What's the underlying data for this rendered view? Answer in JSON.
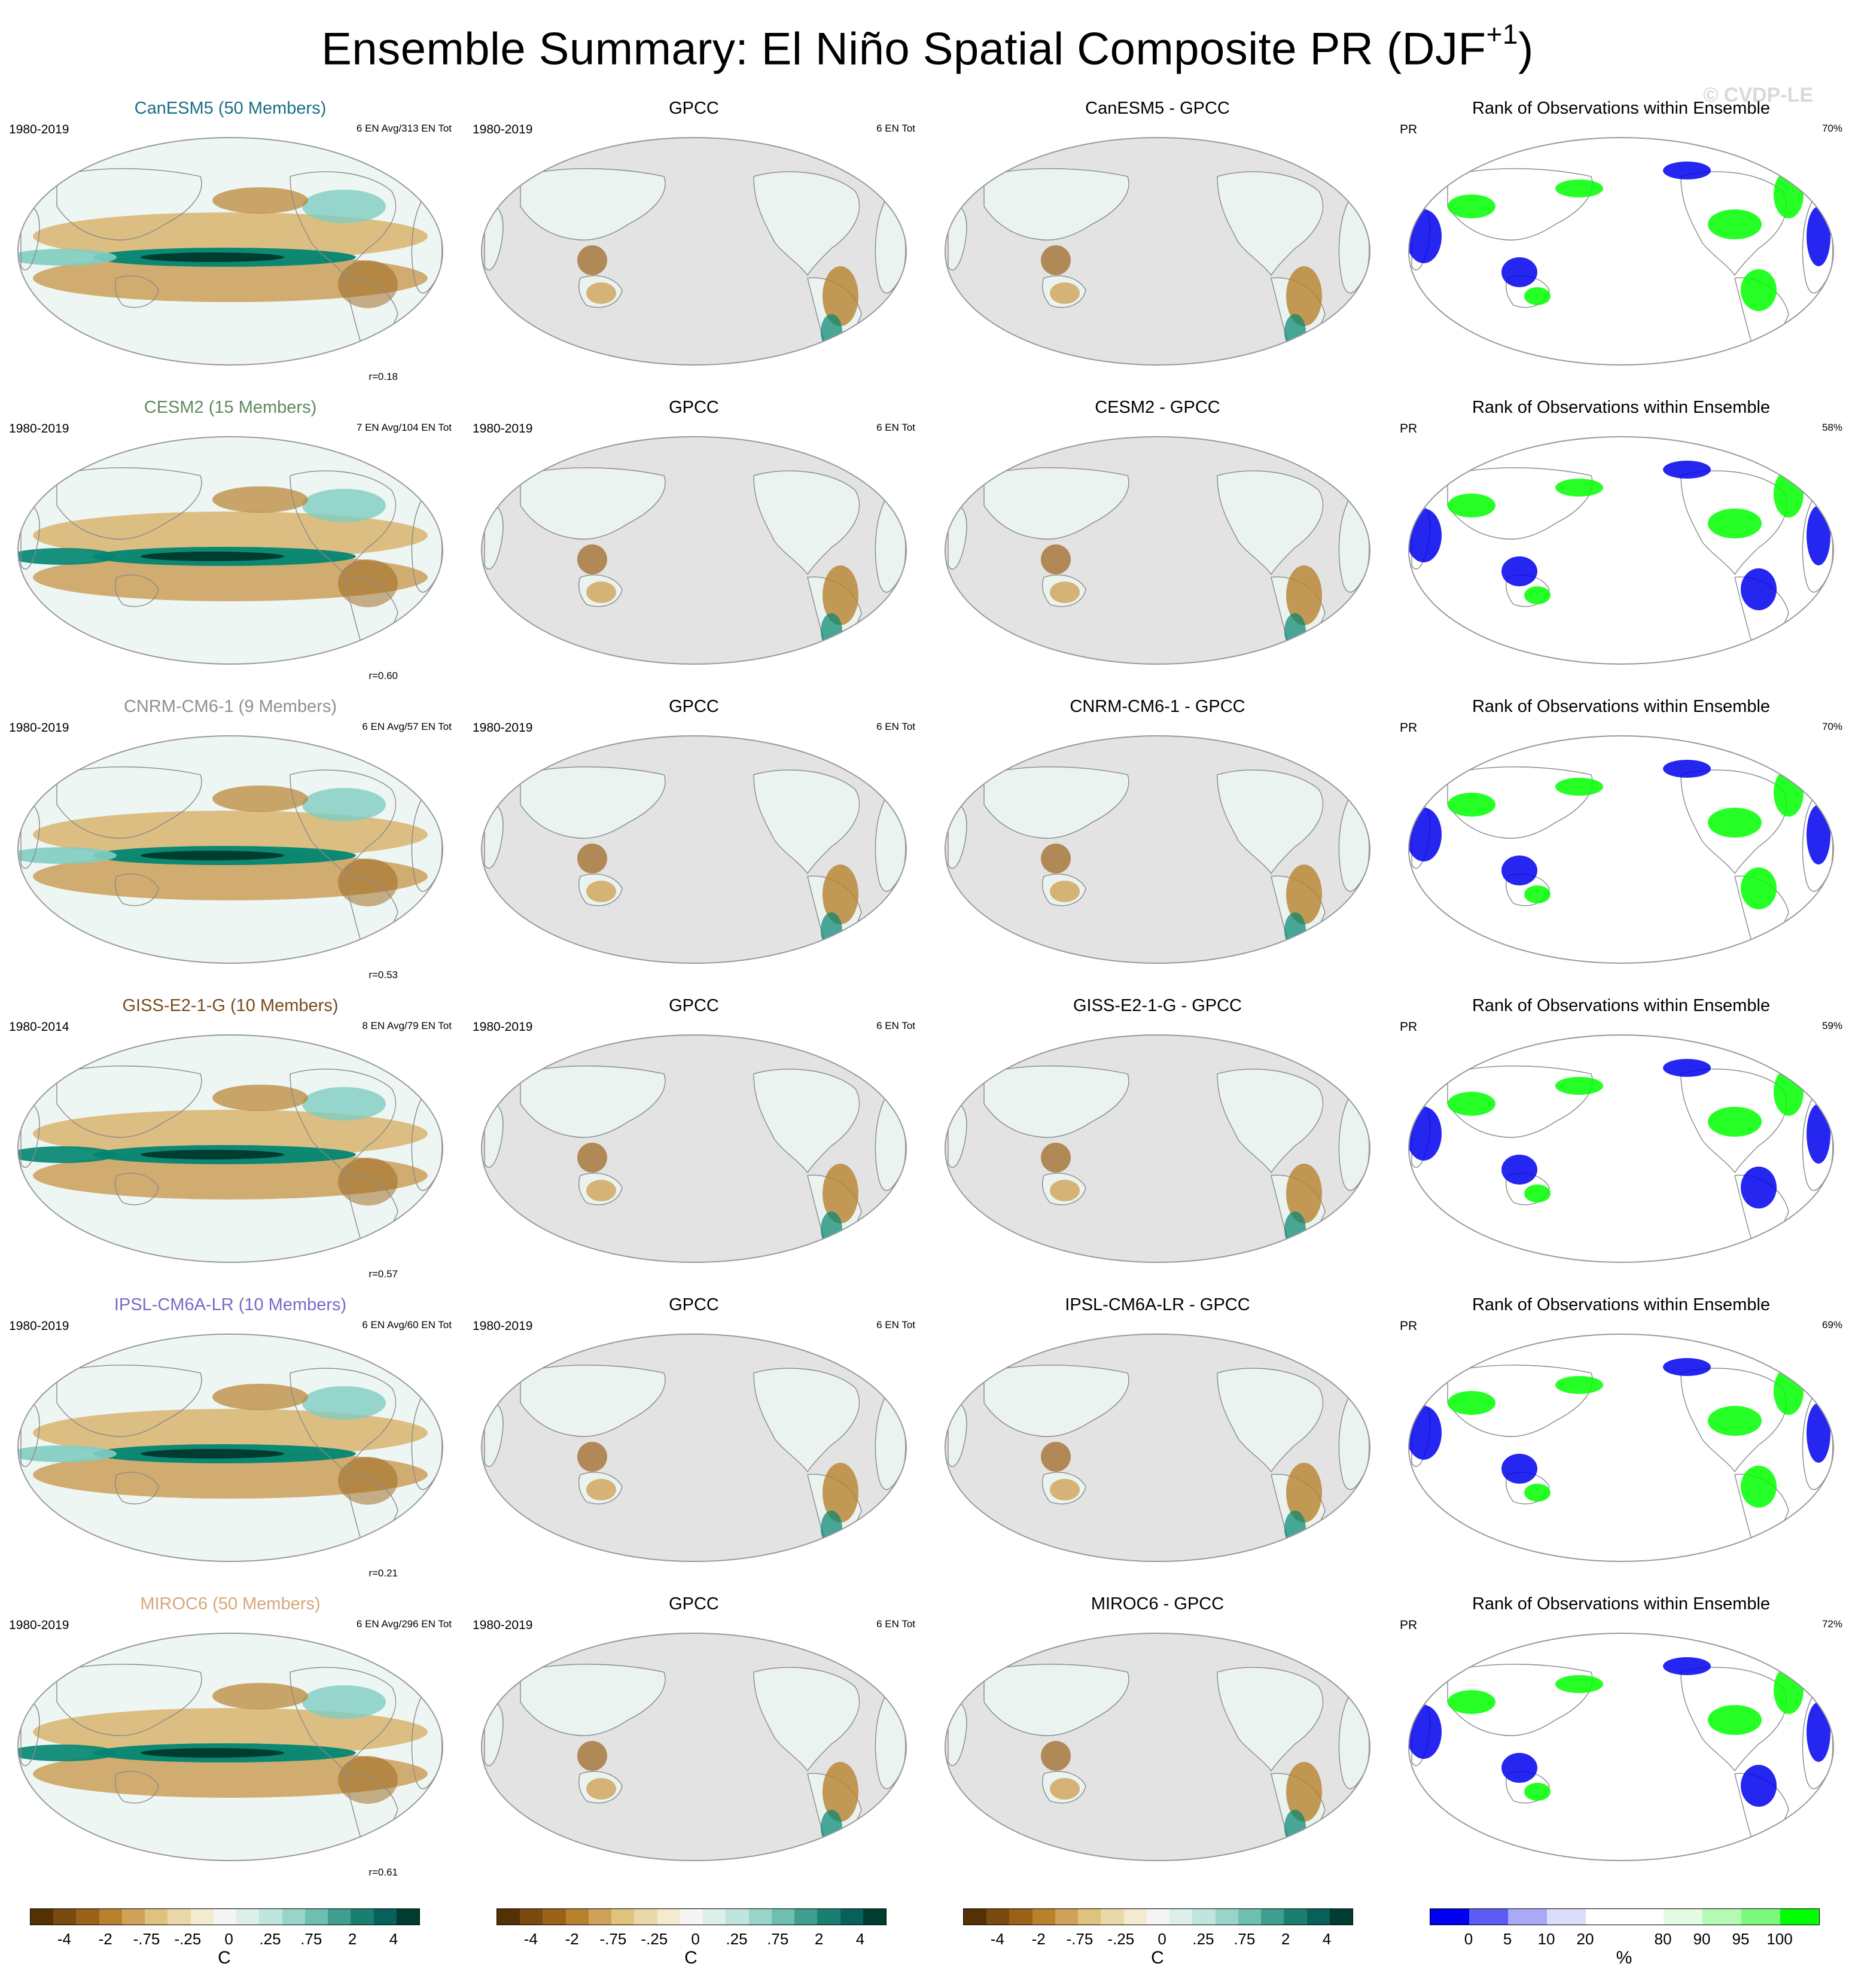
{
  "title": "Ensemble Summary: El Niño Spatial Composite PR (DJF",
  "title_sup": "+1",
  "title_close": ")",
  "watermark": "© CVDP-LE",
  "colors": {
    "brown_dark": "#543005",
    "brown": "#a6611a",
    "tan": "#dfc27d",
    "neutral": "#f5f5f5",
    "teal_light": "#80cdc1",
    "teal": "#018571",
    "teal_dark": "#003c30",
    "land_gray": "#e3e3e3",
    "rank_blue": "#0000ee",
    "rank_green": "#00ff00"
  },
  "rows": [
    {
      "model": "CanESM5 (50 Members)",
      "model_color": "#1a6e86",
      "period": "1980-2019",
      "ens_info": "6 EN Avg/313 EN Tot",
      "r": "r=0.18",
      "obs_title": "GPCC",
      "obs_period": "1980-2019",
      "obs_info": "6 EN Tot",
      "diff_title": "CanESM5 - GPCC",
      "rank_title": "Rank of Observations within Ensemble",
      "rank_var": "PR",
      "rank_pct": "70%"
    },
    {
      "model": "CESM2 (15 Members)",
      "model_color": "#5f8a5e",
      "period": "1980-2019",
      "ens_info": "7 EN Avg/104 EN Tot",
      "r": "r=0.60",
      "obs_title": "GPCC",
      "obs_period": "1980-2019",
      "obs_info": "6 EN Tot",
      "diff_title": "CESM2 - GPCC",
      "rank_title": "Rank of Observations within Ensemble",
      "rank_var": "PR",
      "rank_pct": "58%"
    },
    {
      "model": "CNRM-CM6-1 (9 Members)",
      "model_color": "#8f8f8f",
      "period": "1980-2019",
      "ens_info": "6 EN Avg/57 EN Tot",
      "r": "r=0.53",
      "obs_title": "GPCC",
      "obs_period": "1980-2019",
      "obs_info": "6 EN Tot",
      "diff_title": "CNRM-CM6-1 - GPCC",
      "rank_title": "Rank of Observations within Ensemble",
      "rank_var": "PR",
      "rank_pct": "70%"
    },
    {
      "model": "GISS-E2-1-G (10 Members)",
      "model_color": "#7a4a1c",
      "period": "1980-2014",
      "ens_info": "8 EN Avg/79 EN Tot",
      "r": "r=0.57",
      "obs_title": "GPCC",
      "obs_period": "1980-2019",
      "obs_info": "6 EN Tot",
      "diff_title": "GISS-E2-1-G - GPCC",
      "rank_title": "Rank of Observations within Ensemble",
      "rank_var": "PR",
      "rank_pct": "59%"
    },
    {
      "model": "IPSL-CM6A-LR (10 Members)",
      "model_color": "#7b68c9",
      "period": "1980-2019",
      "ens_info": "6 EN Avg/60 EN Tot",
      "r": "r=0.21",
      "obs_title": "GPCC",
      "obs_period": "1980-2019",
      "obs_info": "6 EN Tot",
      "diff_title": "IPSL-CM6A-LR - GPCC",
      "rank_title": "Rank of Observations within Ensemble",
      "rank_var": "PR",
      "rank_pct": "69%"
    },
    {
      "model": "MIROC6 (50 Members)",
      "model_color": "#d7a77a",
      "period": "1980-2019",
      "ens_info": "6 EN Avg/296 EN Tot",
      "r": "r=0.61",
      "obs_title": "GPCC",
      "obs_period": "1980-2019",
      "obs_info": "6 EN Tot",
      "diff_title": "MIROC6 - GPCC",
      "rank_title": "Rank of Observations within Ensemble",
      "rank_var": "PR",
      "rank_pct": "72%"
    }
  ],
  "colorbars": [
    {
      "unit": "C",
      "ticks": [
        "-4",
        "-2",
        "-.75",
        "-.25",
        "0",
        ".25",
        ".75",
        "2",
        "4"
      ],
      "swatches": [
        "#543005",
        "#7a4a10",
        "#9a6219",
        "#b8822d",
        "#cfa258",
        "#dfc27d",
        "#ead8a8",
        "#f4ead0",
        "#f5f5f5",
        "#dcefeb",
        "#bfe5de",
        "#99d4c9",
        "#6fbfb0",
        "#3f9e8f",
        "#1b7f70",
        "#07605a",
        "#003c30"
      ]
    },
    {
      "unit": "C",
      "ticks": [
        "-4",
        "-2",
        "-.75",
        "-.25",
        "0",
        ".25",
        ".75",
        "2",
        "4"
      ],
      "swatches": [
        "#543005",
        "#7a4a10",
        "#9a6219",
        "#b8822d",
        "#cfa258",
        "#dfc27d",
        "#ead8a8",
        "#f4ead0",
        "#f5f5f5",
        "#dcefeb",
        "#bfe5de",
        "#99d4c9",
        "#6fbfb0",
        "#3f9e8f",
        "#1b7f70",
        "#07605a",
        "#003c30"
      ]
    },
    {
      "unit": "C",
      "ticks": [
        "-4",
        "-2",
        "-.75",
        "-.25",
        "0",
        ".25",
        ".75",
        "2",
        "4"
      ],
      "swatches": [
        "#543005",
        "#7a4a10",
        "#9a6219",
        "#b8822d",
        "#cfa258",
        "#dfc27d",
        "#ead8a8",
        "#f4ead0",
        "#f5f5f5",
        "#dcefeb",
        "#bfe5de",
        "#99d4c9",
        "#6fbfb0",
        "#3f9e8f",
        "#1b7f70",
        "#07605a",
        "#003c30"
      ]
    },
    {
      "unit": "%",
      "ticks": [
        "0",
        "5",
        "10",
        "20",
        "80",
        "90",
        "95",
        "100"
      ],
      "swatches": [
        "#0000ee",
        "#5b5bf5",
        "#a9a9f8",
        "#dcdcfb",
        "#ffffff",
        "#ffffff",
        "#e2fbe2",
        "#b4f9b4",
        "#7df97d",
        "#00ff00"
      ]
    }
  ]
}
